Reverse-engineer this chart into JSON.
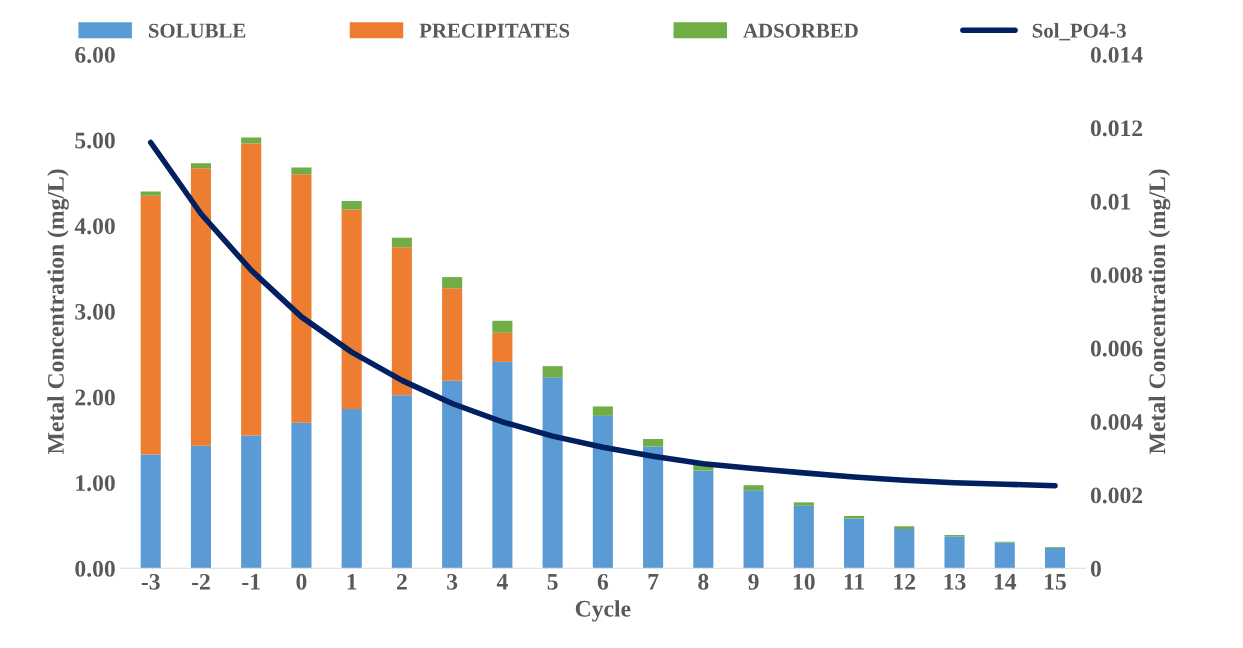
{
  "chart_data": {
    "type": "bar",
    "stacked": true,
    "xlabel": "Cycle",
    "ylabel": "Metal Concentration (mg/L)",
    "y2label": "Metal Concentration (mg/L)",
    "categories": [
      "-3",
      "-2",
      "-1",
      "0",
      "1",
      "2",
      "3",
      "4",
      "5",
      "6",
      "7",
      "8",
      "9",
      "10",
      "11",
      "12",
      "13",
      "14",
      "15"
    ],
    "series": [
      {
        "name": "SOLUBLE",
        "color": "#5b9bd5",
        "values": [
          1.33,
          1.43,
          1.55,
          1.7,
          1.86,
          2.02,
          2.19,
          2.41,
          2.23,
          1.78,
          1.42,
          1.14,
          0.91,
          0.73,
          0.58,
          0.46,
          0.37,
          0.3,
          0.24
        ]
      },
      {
        "name": "PRECIPITATES",
        "color": "#ed7d31",
        "values": [
          3.02,
          3.24,
          3.41,
          2.9,
          2.33,
          1.73,
          1.08,
          0.34,
          null,
          null,
          null,
          null,
          null,
          null,
          null,
          null,
          null,
          null,
          null
        ]
      },
      {
        "name": "ADSORBED",
        "color": "#70ad47",
        "values": [
          0.05,
          0.06,
          0.07,
          0.08,
          0.1,
          0.11,
          0.13,
          0.14,
          0.13,
          0.11,
          0.09,
          0.08,
          0.06,
          0.04,
          0.03,
          0.03,
          0.02,
          0.01,
          0.01
        ]
      },
      {
        "name": "Sol_PO4-3",
        "color": "#002060",
        "type": "line",
        "axis": "y2",
        "values": [
          0.0116,
          0.00966,
          0.00812,
          0.00685,
          0.00589,
          0.00512,
          0.00449,
          0.00399,
          0.0036,
          0.0033,
          0.00305,
          0.00285,
          0.00272,
          0.0026,
          0.00249,
          0.0024,
          0.00233,
          0.00229,
          0.00225
        ]
      }
    ],
    "ylim": [
      0,
      6
    ],
    "yticks": [
      {
        "value": 0,
        "label": "0.00"
      },
      {
        "value": 1,
        "label": "1.00"
      },
      {
        "value": 2,
        "label": "2.00"
      },
      {
        "value": 3,
        "label": "3.00"
      },
      {
        "value": 4,
        "label": "4.00"
      },
      {
        "value": 5,
        "label": "5.00"
      },
      {
        "value": 6,
        "label": "6.00"
      }
    ],
    "y2lim": [
      0,
      0.014
    ],
    "y2ticks": [
      0,
      0.002,
      0.004,
      0.006,
      0.008,
      0.01,
      0.012,
      0.014
    ],
    "legend": "top",
    "grid": false
  }
}
